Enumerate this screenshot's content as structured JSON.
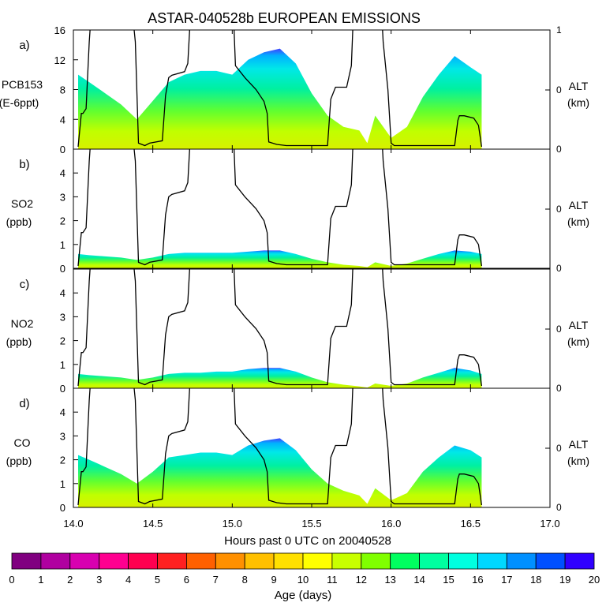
{
  "title": "ASTAR-040528b EUROPEAN EMISSIONS",
  "xlabel": "Hours past 0 UTC on 20040528",
  "x_ticks": [
    "14.0",
    "14.5",
    "15.0",
    "15.5",
    "16.0",
    "16.5",
    "17.0"
  ],
  "colorbar": {
    "label": "Age (days)",
    "ticks": [
      "0",
      "1",
      "2",
      "3",
      "4",
      "5",
      "6",
      "7",
      "8",
      "9",
      "10",
      "11",
      "12",
      "13",
      "14",
      "15",
      "16",
      "17",
      "18",
      "19",
      "20"
    ],
    "colors": [
      "#800080",
      "#b000a0",
      "#d800b0",
      "#ff0090",
      "#ff0050",
      "#ff2020",
      "#ff6000",
      "#ff9000",
      "#ffc000",
      "#ffe000",
      "#ffff00",
      "#c8ff00",
      "#80ff00",
      "#00ff60",
      "#00ffa0",
      "#00ffe0",
      "#00d8ff",
      "#0090ff",
      "#0050ff",
      "#3000ff",
      "#8000ff"
    ]
  },
  "panels": [
    {
      "letter": "a)",
      "name": "PCB153",
      "unit": "(E-6ppt)",
      "y_ticks": [
        "0",
        "4",
        "8",
        "12",
        "16"
      ],
      "right_label": "ALT",
      "right_unit": "(km)",
      "right_ticks": [
        "0",
        "0",
        "1"
      ]
    },
    {
      "letter": "b)",
      "name": "SO2",
      "unit": "(ppb)",
      "y_ticks": [
        "0",
        "1",
        "2",
        "3",
        "4"
      ],
      "right_label": "ALT",
      "right_unit": "(km)",
      "right_ticks": [
        "0",
        "0"
      ]
    },
    {
      "letter": "c)",
      "name": "NO2",
      "unit": "(ppb)",
      "y_ticks": [
        "0",
        "1",
        "2",
        "3",
        "4"
      ],
      "right_label": "ALT",
      "right_unit": "(km)",
      "right_ticks": [
        "0",
        "0"
      ]
    },
    {
      "letter": "d)",
      "name": "CO",
      "unit": "(ppb)",
      "y_ticks": [
        "0",
        "1",
        "2",
        "3",
        "4"
      ],
      "right_label": "ALT",
      "right_unit": "(km)",
      "right_ticks": [
        "0",
        "0"
      ]
    }
  ],
  "chart_data": {
    "type": "area",
    "title": "ASTAR-040528b EUROPEAN EMISSIONS",
    "xlabel": "Hours past 0 UTC on 20040528",
    "xlim": [
      14.0,
      17.0
    ],
    "colorbar_label": "Age (days)",
    "colorbar_range": [
      0,
      20
    ],
    "altitude_track": {
      "x": [
        14.03,
        14.05,
        14.06,
        14.08,
        14.1,
        14.12,
        14.36,
        14.39,
        14.41,
        14.45,
        14.48,
        14.56,
        14.58,
        14.6,
        14.62,
        14.7,
        14.72,
        14.74,
        14.76,
        15.0,
        15.02,
        15.08,
        15.15,
        15.2,
        15.22,
        15.23,
        15.28,
        15.34,
        15.4,
        15.6,
        15.62,
        15.65,
        15.72,
        15.75,
        15.77,
        15.93,
        15.95,
        15.98,
        16.0,
        16.02,
        16.1,
        16.2,
        16.3,
        16.4,
        16.42,
        16.43,
        16.46,
        16.52,
        16.55,
        16.57
      ],
      "km_fraction": [
        0.02,
        0.3,
        0.3,
        0.34,
        0.9,
        1.3,
        1.3,
        0.9,
        0.05,
        0.03,
        0.05,
        0.07,
        0.45,
        0.6,
        0.62,
        0.65,
        0.72,
        1.2,
        1.4,
        1.4,
        0.7,
        0.6,
        0.5,
        0.4,
        0.3,
        0.06,
        0.04,
        0.03,
        0.03,
        0.03,
        0.42,
        0.52,
        0.52,
        0.7,
        1.4,
        1.4,
        0.9,
        0.5,
        0.05,
        0.03,
        0.03,
        0.03,
        0.03,
        0.03,
        0.24,
        0.28,
        0.28,
        0.26,
        0.2,
        0.02
      ]
    },
    "series": [
      {
        "name": "PCB153",
        "ylim": [
          0,
          16
        ],
        "x": [
          14.03,
          14.1,
          14.2,
          14.3,
          14.4,
          14.5,
          14.6,
          14.7,
          14.8,
          14.9,
          15.0,
          15.1,
          15.2,
          15.3,
          15.4,
          15.5,
          15.6,
          15.7,
          15.8,
          15.85,
          15.9,
          16.0,
          16.1,
          16.2,
          16.3,
          16.4,
          16.5,
          16.57
        ],
        "values": [
          10.0,
          9.0,
          7.5,
          6.0,
          4.0,
          6.5,
          9.0,
          10.0,
          10.5,
          10.5,
          10.0,
          12.0,
          13.0,
          13.5,
          11.5,
          7.5,
          4.5,
          3.0,
          2.5,
          0.8,
          4.5,
          1.5,
          3.0,
          7.0,
          10.0,
          12.5,
          11.0,
          10.0
        ]
      },
      {
        "name": "SO2",
        "ylim": [
          0,
          5
        ],
        "x": [
          14.03,
          14.1,
          14.2,
          14.3,
          14.4,
          14.5,
          14.6,
          14.7,
          14.8,
          14.9,
          15.0,
          15.1,
          15.2,
          15.3,
          15.4,
          15.5,
          15.6,
          15.7,
          15.8,
          15.85,
          15.9,
          16.0,
          16.1,
          16.2,
          16.3,
          16.4,
          16.5,
          16.57
        ],
        "values": [
          0.6,
          0.55,
          0.5,
          0.45,
          0.35,
          0.45,
          0.6,
          0.65,
          0.65,
          0.65,
          0.65,
          0.7,
          0.75,
          0.75,
          0.6,
          0.4,
          0.25,
          0.15,
          0.1,
          0.05,
          0.25,
          0.1,
          0.2,
          0.4,
          0.6,
          0.75,
          0.7,
          0.6
        ]
      },
      {
        "name": "NO2",
        "ylim": [
          0,
          5
        ],
        "x": [
          14.03,
          14.1,
          14.2,
          14.3,
          14.4,
          14.5,
          14.6,
          14.7,
          14.8,
          14.9,
          15.0,
          15.1,
          15.2,
          15.3,
          15.4,
          15.5,
          15.6,
          15.7,
          15.8,
          15.85,
          15.9,
          16.0,
          16.1,
          16.2,
          16.3,
          16.4,
          16.5,
          16.57
        ],
        "values": [
          0.6,
          0.55,
          0.5,
          0.45,
          0.35,
          0.45,
          0.6,
          0.65,
          0.65,
          0.7,
          0.7,
          0.8,
          0.85,
          0.85,
          0.7,
          0.45,
          0.25,
          0.15,
          0.08,
          0.03,
          0.2,
          0.1,
          0.2,
          0.45,
          0.65,
          0.85,
          0.75,
          0.6
        ]
      },
      {
        "name": "CO",
        "ylim": [
          0,
          5
        ],
        "x": [
          14.03,
          14.1,
          14.2,
          14.3,
          14.4,
          14.5,
          14.6,
          14.7,
          14.8,
          14.9,
          15.0,
          15.1,
          15.2,
          15.3,
          15.4,
          15.5,
          15.6,
          15.7,
          15.8,
          15.85,
          15.9,
          16.0,
          16.1,
          16.2,
          16.3,
          16.4,
          16.5,
          16.57
        ],
        "values": [
          2.2,
          2.0,
          1.7,
          1.4,
          1.0,
          1.5,
          2.1,
          2.2,
          2.3,
          2.3,
          2.2,
          2.6,
          2.8,
          2.9,
          2.4,
          1.6,
          1.0,
          0.7,
          0.5,
          0.15,
          0.8,
          0.3,
          0.6,
          1.5,
          2.1,
          2.6,
          2.4,
          2.1
        ]
      }
    ]
  }
}
